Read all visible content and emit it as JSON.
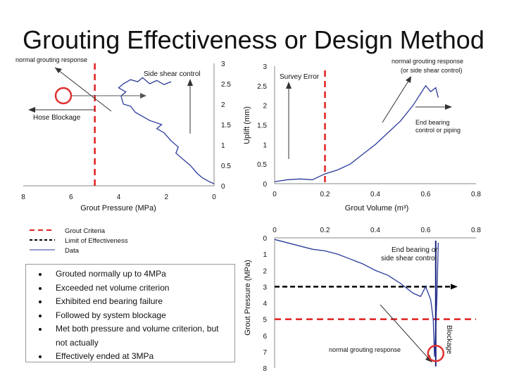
{
  "slide": {
    "title": "Grouting Effectiveness or Design Method"
  },
  "colors": {
    "criteria": "#e02020",
    "data": "#2a3a9a",
    "limit": "#000000",
    "annotation": "#333333",
    "highlight": "#e03030"
  },
  "chart_data": [
    {
      "type": "line",
      "title": "",
      "xlabel": "Grout Pressure (MPa)",
      "ylabel": "",
      "xlim": [
        8,
        0
      ],
      "ylim": [
        0,
        3
      ],
      "xticks": [
        "8",
        "6",
        "4",
        "2",
        "0"
      ],
      "yticks": [
        "3",
        "2.5",
        "2",
        "1.5",
        "1",
        "0.5",
        "0"
      ],
      "series": [
        {
          "name": "Data",
          "x": [
            0,
            0.2,
            0.5,
            0.7,
            1.0,
            1.2,
            1.6,
            1.5,
            1.8,
            2.1,
            2.4,
            2.2,
            2.7,
            3.0,
            3.3,
            3.5,
            3.8,
            3.9,
            3.7,
            4.0,
            3.8,
            3.5,
            3.2,
            3.0,
            2.7,
            2.4,
            2.1,
            1.8
          ],
          "y": [
            0.05,
            0.1,
            0.2,
            0.3,
            0.5,
            0.6,
            0.8,
            0.95,
            1.1,
            1.3,
            1.4,
            1.5,
            1.6,
            1.7,
            1.8,
            1.95,
            2.0,
            2.2,
            2.3,
            2.4,
            2.5,
            2.6,
            2.55,
            2.65,
            2.5,
            2.58,
            2.48,
            2.55
          ]
        }
      ],
      "criteria_x": 5,
      "annotations": [
        "normal grouting response",
        "Side shear control",
        "Hose Blockage"
      ]
    },
    {
      "type": "line",
      "title": "",
      "xlabel": "Grout Volume (m³)",
      "ylabel": "Uplift (mm)",
      "xlim": [
        0,
        0.8
      ],
      "ylim": [
        0,
        3
      ],
      "xticks": [
        "0",
        "0.2",
        "0.4",
        "0.6",
        "0.8"
      ],
      "yticks": [
        "3",
        "2.5",
        "2",
        "1.5",
        "1",
        "0.5",
        "0"
      ],
      "series": [
        {
          "name": "Data",
          "x": [
            0,
            0.05,
            0.1,
            0.15,
            0.2,
            0.25,
            0.3,
            0.35,
            0.4,
            0.45,
            0.5,
            0.55,
            0.58,
            0.6,
            0.62,
            0.64,
            0.65
          ],
          "y": [
            0.05,
            0.1,
            0.12,
            0.1,
            0.25,
            0.35,
            0.5,
            0.75,
            1.0,
            1.3,
            1.6,
            2.0,
            2.3,
            2.5,
            2.35,
            2.45,
            2.2
          ]
        }
      ],
      "criteria_x": 0.2,
      "annotations": [
        "Survey Error",
        "normal grouting response",
        "(or side shear control)",
        "End bearing",
        "control or piping"
      ]
    },
    {
      "type": "line",
      "title": "",
      "xlabel": "",
      "ylabel": "Grout Pressure (MPa)",
      "xlim": [
        0,
        0.8
      ],
      "ylim": [
        0,
        8
      ],
      "xticks": [
        "0",
        "0.2",
        "0.4",
        "0.6",
        "0.8"
      ],
      "yticks": [
        "0",
        "1",
        "2",
        "3",
        "4",
        "5",
        "6",
        "7",
        "8"
      ],
      "series": [
        {
          "name": "Data",
          "x": [
            0,
            0.05,
            0.1,
            0.15,
            0.2,
            0.25,
            0.3,
            0.35,
            0.4,
            0.45,
            0.5,
            0.55,
            0.58,
            0.6,
            0.62,
            0.63,
            0.635,
            0.64,
            0.645,
            0.65
          ],
          "y": [
            0.1,
            0.3,
            0.5,
            0.7,
            0.8,
            1.0,
            1.3,
            1.6,
            2.0,
            2.3,
            2.8,
            3.4,
            3.6,
            3.0,
            3.8,
            5.0,
            7.3,
            5.5,
            3.5,
            0.3
          ]
        }
      ],
      "criteria_y": 5,
      "limit_y": 3,
      "annotations": [
        "End bearing or",
        "side shear control",
        "normal grouting response",
        "Blockage"
      ]
    }
  ],
  "legend": {
    "items": [
      {
        "label": "Grout Criteria"
      },
      {
        "label": "Limit of Effectiveness"
      },
      {
        "label": "Data"
      }
    ]
  },
  "bullets": {
    "items": [
      "Grouted normally up to 4MPa",
      "Exceeded net volume criterion",
      "Exhibited end bearing failure",
      "Followed by system blockage",
      "Met both pressure and volume criterion, but not actually",
      "Effectively ended at 3MPa"
    ]
  }
}
